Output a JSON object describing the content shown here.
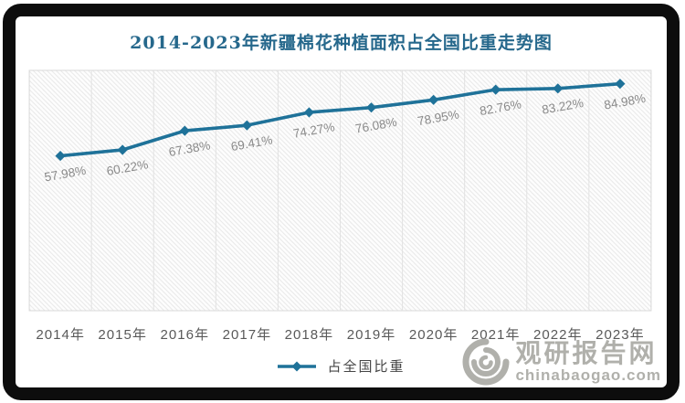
{
  "colors": {
    "frame": "#0d0d0d",
    "title": "#26688C",
    "line": "#1F7299",
    "data_label": "#8a8a8a",
    "axis_label": "#595959",
    "legend_text": "#454545",
    "watermark": "#b0b0ab",
    "gridline": "#e2e2e2",
    "plot_border": "#d9d9d9"
  },
  "chart_data": {
    "type": "line",
    "title": "2014-2023年新疆棉花种植面积占全国比重走势图",
    "categories": [
      "2014年",
      "2015年",
      "2016年",
      "2017年",
      "2018年",
      "2019年",
      "2020年",
      "2021年",
      "2022年",
      "2023年"
    ],
    "series": [
      {
        "name": "占全国比重",
        "values": [
          57.98,
          60.22,
          67.38,
          69.41,
          74.27,
          76.08,
          78.95,
          82.76,
          83.22,
          84.98
        ]
      }
    ],
    "value_suffix": "%",
    "xlabel": "",
    "ylabel": "",
    "ylim": [
      0,
      90
    ],
    "grid": "vertical-only",
    "plot_background": "diagonal-hatch",
    "marker": "diamond",
    "data_labels_visible": true,
    "legend_position": "bottom"
  },
  "legend": {
    "label": "占全国比重"
  },
  "watermark": {
    "site_name": "观研报告网",
    "site_domain": "chinabaogao.com",
    "logo": "swirl-galaxy"
  }
}
